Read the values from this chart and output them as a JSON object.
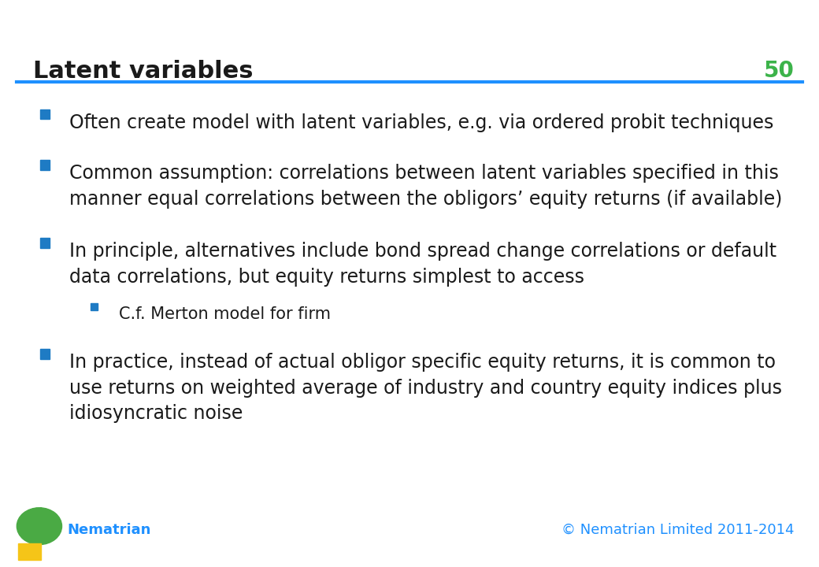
{
  "title": "Latent variables",
  "slide_number": "50",
  "title_color": "#1a1a1a",
  "title_fontsize": 22,
  "slide_number_color": "#3cb34a",
  "slide_number_fontsize": 20,
  "line_color": "#1e90ff",
  "background_color": "#ffffff",
  "bullet_color": "#1e7bc4",
  "bullet_text_color": "#1a1a1a",
  "footer_color": "#1e90ff",
  "footer_left": "Nematrian",
  "footer_right": "© Nematrian Limited 2011-2014",
  "bullet_fontsize": 17,
  "sub_bullet_fontsize": 15,
  "bullets": [
    {
      "text": "Often create model with latent variables, e.g. via ordered probit techniques",
      "level": 0,
      "sub": []
    },
    {
      "text": "Common assumption: correlations between latent variables specified in this\nmanner equal correlations between the obligors’ equity returns (if available)",
      "level": 0,
      "sub": []
    },
    {
      "text": "In principle, alternatives include bond spread change correlations or default\ndata correlations, but equity returns simplest to access",
      "level": 0,
      "sub": [
        "C.f. Merton model for firm"
      ]
    },
    {
      "text": "In practice, instead of actual obligor specific equity returns, it is common to\nuse returns on weighted average of industry and country equity indices plus\nidiosyncratic noise",
      "level": 0,
      "sub": []
    }
  ]
}
